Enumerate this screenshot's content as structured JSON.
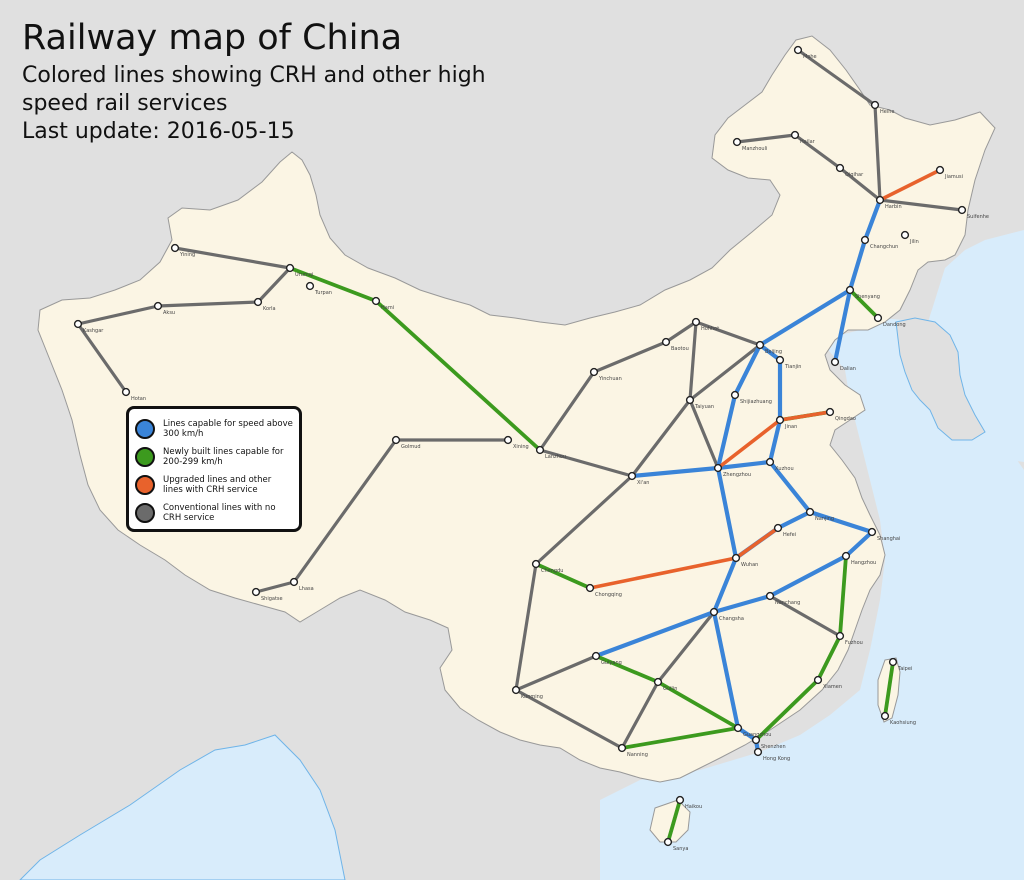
{
  "header": {
    "title": "Railway map of China",
    "subtitle": "Colored lines showing CRH and other high speed rail services",
    "update": "Last update: 2016-05-15"
  },
  "colors": {
    "land": "#fbf5e4",
    "sea": "#d8ecfb",
    "neighbors": "#e0e0e0",
    "border": "#888888",
    "hsr300": "#3a84d8",
    "hsr200": "#3c9a1e",
    "upgraded": "#e8622c",
    "conventional": "#6b6b6b"
  },
  "legend": [
    {
      "label": "Lines capable for speed above 300 km/h",
      "color": "#3a84d8"
    },
    {
      "label": "Newly built lines capable for 200-299 km/h",
      "color": "#3c9a1e"
    },
    {
      "label": "Upgraded lines and other lines with CRH service",
      "color": "#e8622c"
    },
    {
      "label": "Conventional lines with no CRH service",
      "color": "#6b6b6b"
    }
  ],
  "cities": [
    {
      "name": "Mohe"
    },
    {
      "name": "Heihe"
    },
    {
      "name": "Manzhouli"
    },
    {
      "name": "Hailar"
    },
    {
      "name": "Qiqihar"
    },
    {
      "name": "Harbin"
    },
    {
      "name": "Jiamusi"
    },
    {
      "name": "Suifenhe"
    },
    {
      "name": "Changchun"
    },
    {
      "name": "Jilin"
    },
    {
      "name": "Shenyang"
    },
    {
      "name": "Dalian"
    },
    {
      "name": "Dandong"
    },
    {
      "name": "Hohhot"
    },
    {
      "name": "Baotou"
    },
    {
      "name": "Beijing"
    },
    {
      "name": "Tianjin"
    },
    {
      "name": "Shijiazhuang"
    },
    {
      "name": "Taiyuan"
    },
    {
      "name": "Jinan"
    },
    {
      "name": "Qingdao"
    },
    {
      "name": "Zhengzhou"
    },
    {
      "name": "Xi'an"
    },
    {
      "name": "Lanzhou"
    },
    {
      "name": "Xining"
    },
    {
      "name": "Yinchuan"
    },
    {
      "name": "Urumqi"
    },
    {
      "name": "Turpan"
    },
    {
      "name": "Hami"
    },
    {
      "name": "Kashgar"
    },
    {
      "name": "Hotan"
    },
    {
      "name": "Aksu"
    },
    {
      "name": "Korla"
    },
    {
      "name": "Yining"
    },
    {
      "name": "Golmud"
    },
    {
      "name": "Lhasa"
    },
    {
      "name": "Shigatse"
    },
    {
      "name": "Chengdu"
    },
    {
      "name": "Chongqing"
    },
    {
      "name": "Guiyang"
    },
    {
      "name": "Kunming"
    },
    {
      "name": "Nanning"
    },
    {
      "name": "Guangzhou"
    },
    {
      "name": "Shenzhen"
    },
    {
      "name": "Hong Kong"
    },
    {
      "name": "Haikou"
    },
    {
      "name": "Sanya"
    },
    {
      "name": "Wuhan"
    },
    {
      "name": "Changsha"
    },
    {
      "name": "Nanchang"
    },
    {
      "name": "Fuzhou"
    },
    {
      "name": "Xiamen"
    },
    {
      "name": "Hangzhou"
    },
    {
      "name": "Shanghai"
    },
    {
      "name": "Nanjing"
    },
    {
      "name": "Hefei"
    },
    {
      "name": "Taipei"
    },
    {
      "name": "Kaohsiung"
    },
    {
      "name": "Xuzhou"
    },
    {
      "name": "Guilin"
    }
  ]
}
